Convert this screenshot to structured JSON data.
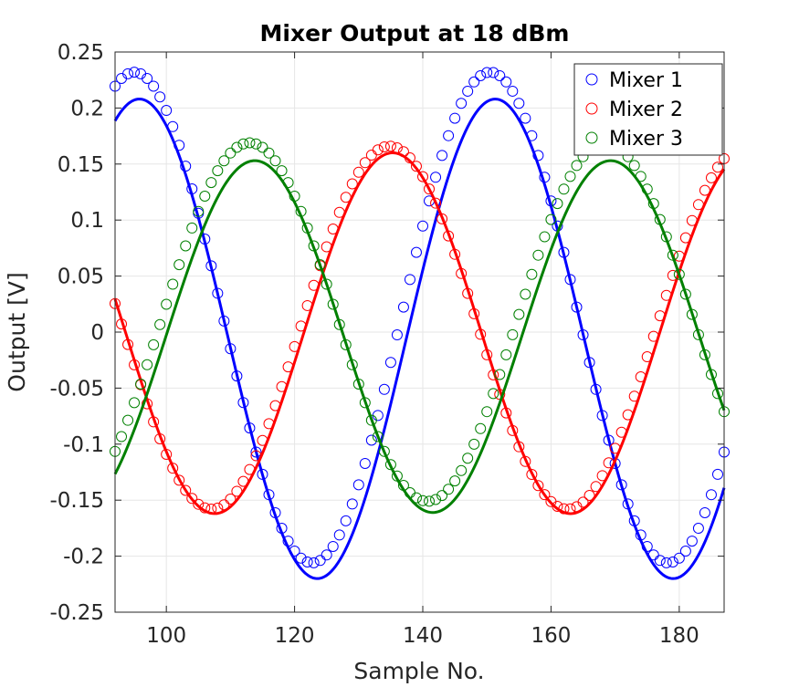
{
  "chart_data": {
    "type": "line",
    "title": "Mixer Output at 18 dBm",
    "xlabel": "Sample No.",
    "ylabel": "Output [V]",
    "xlim": [
      92,
      187
    ],
    "ylim": [
      -0.25,
      0.25
    ],
    "xticks": [
      100,
      120,
      140,
      160,
      180
    ],
    "xtick_labels": [
      "100",
      "120",
      "140",
      "160",
      "180"
    ],
    "yticks": [
      -0.25,
      -0.2,
      -0.15,
      -0.1,
      -0.05,
      0,
      0.05,
      0.1,
      0.15,
      0.2,
      0.25
    ],
    "ytick_labels": [
      "-0.25",
      "-0.2",
      "-0.15",
      "-0.1",
      "-0.05",
      "0",
      "0.05",
      "0.1",
      "0.15",
      "0.2",
      "0.25"
    ],
    "grid": true,
    "legend_position": "top-right",
    "marker": "open-circle",
    "series": [
      {
        "name": "Mixer 1",
        "color": "#0000ff",
        "fit": {
          "amplitude": 0.214,
          "offset": -0.006,
          "period": 55.5,
          "peak_x": 95.8
        },
        "samples": {
          "amplitude": 0.219,
          "offset": 0.013,
          "period": 55.5,
          "peak_x": 95.0
        }
      },
      {
        "name": "Mixer 2",
        "color": "#ff0000",
        "fit": {
          "amplitude": 0.161,
          "offset": -0.001,
          "period": 55.5,
          "peak_x": 135.3
        },
        "samples": {
          "amplitude": 0.162,
          "offset": 0.004,
          "period": 55.5,
          "peak_x": 134.8
        }
      },
      {
        "name": "Mixer 3",
        "color": "#008000",
        "fit": {
          "amplitude": 0.157,
          "offset": -0.004,
          "period": 55.5,
          "peak_x": 113.8
        },
        "samples": {
          "amplitude": 0.16,
          "offset": 0.009,
          "period": 55.5,
          "peak_x": 113.0
        }
      }
    ]
  }
}
